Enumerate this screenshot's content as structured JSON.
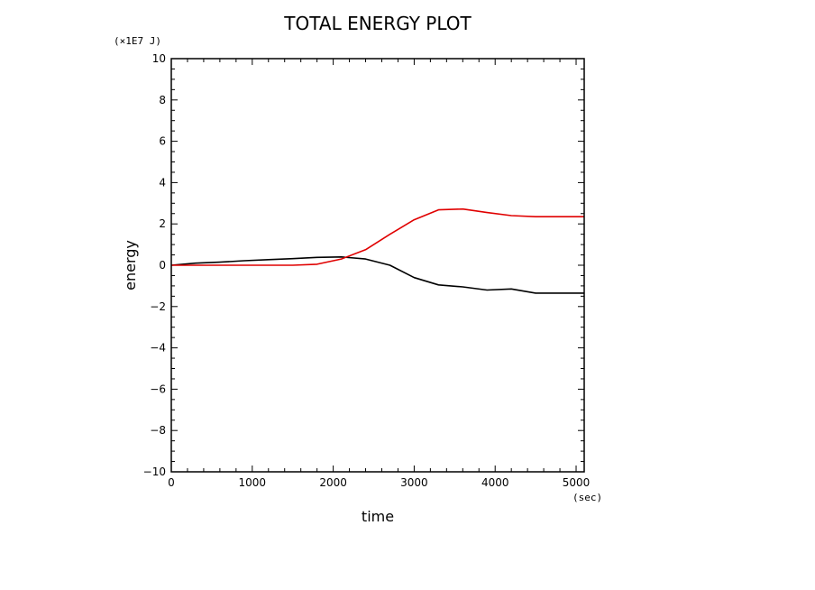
{
  "chart_data": {
    "type": "line",
    "title": "TOTAL ENERGY PLOT",
    "xlabel": "time",
    "ylabel": "energy",
    "x_unit": "(sec)",
    "y_unit": "(×1E7 J)",
    "xlim": [
      0,
      5100
    ],
    "ylim": [
      -10,
      10
    ],
    "x_ticks": [
      0,
      1000,
      2000,
      3000,
      4000,
      5000
    ],
    "y_ticks": [
      -10,
      -8,
      -6,
      -4,
      -2,
      0,
      2,
      4,
      6,
      8,
      10
    ],
    "grid": false,
    "series": [
      {
        "color": "#000000",
        "x": [
          0,
          300,
          600,
          900,
          1200,
          1500,
          1800,
          2100,
          2400,
          2700,
          3000,
          3300,
          3600,
          3900,
          4200,
          4500,
          4800,
          5100
        ],
        "y": [
          0,
          0.1,
          0.15,
          0.22,
          0.27,
          0.32,
          0.38,
          0.4,
          0.3,
          0.0,
          -0.6,
          -0.95,
          -1.05,
          -1.2,
          -1.15,
          -1.35,
          -1.35,
          -1.35
        ]
      },
      {
        "color": "#e00000",
        "x": [
          0,
          300,
          600,
          900,
          1200,
          1500,
          1800,
          2100,
          2400,
          2700,
          3000,
          3300,
          3600,
          3900,
          4200,
          4500,
          4800,
          5100
        ],
        "y": [
          0,
          0,
          0,
          0,
          0,
          0,
          0.05,
          0.3,
          0.75,
          1.5,
          2.2,
          2.68,
          2.72,
          2.55,
          2.4,
          2.35,
          2.35,
          2.35
        ]
      }
    ]
  }
}
